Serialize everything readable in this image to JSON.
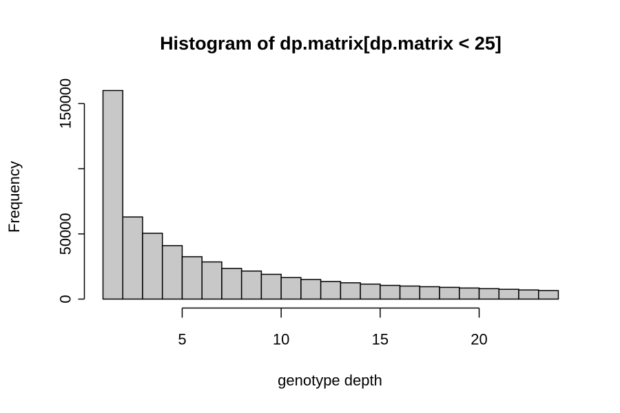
{
  "chart_data": {
    "type": "bar",
    "title": "Histogram of dp.matrix[dp.matrix < 25]",
    "xlabel": "genotype depth",
    "ylabel": "Frequency",
    "x_ticks": [
      5,
      10,
      15,
      20
    ],
    "y_ticks": [
      0,
      50000,
      150000
    ],
    "xlim": [
      1,
      24
    ],
    "ylim": [
      0,
      160000
    ],
    "grid": false,
    "bin_edges": [
      1,
      2,
      3,
      4,
      5,
      6,
      7,
      8,
      9,
      10,
      11,
      12,
      13,
      14,
      15,
      16,
      17,
      18,
      19,
      20,
      21,
      22,
      23,
      24
    ],
    "values": [
      160000,
      63000,
      50500,
      41000,
      32500,
      28500,
      23500,
      21500,
      19000,
      16500,
      15000,
      13500,
      12500,
      11500,
      10500,
      10000,
      9500,
      9000,
      8500,
      8000,
      7500,
      7000,
      6500
    ]
  },
  "colors": {
    "bar_fill": "#c8c8c8",
    "bar_stroke": "#000000",
    "axis": "#000000",
    "background": "#ffffff"
  }
}
